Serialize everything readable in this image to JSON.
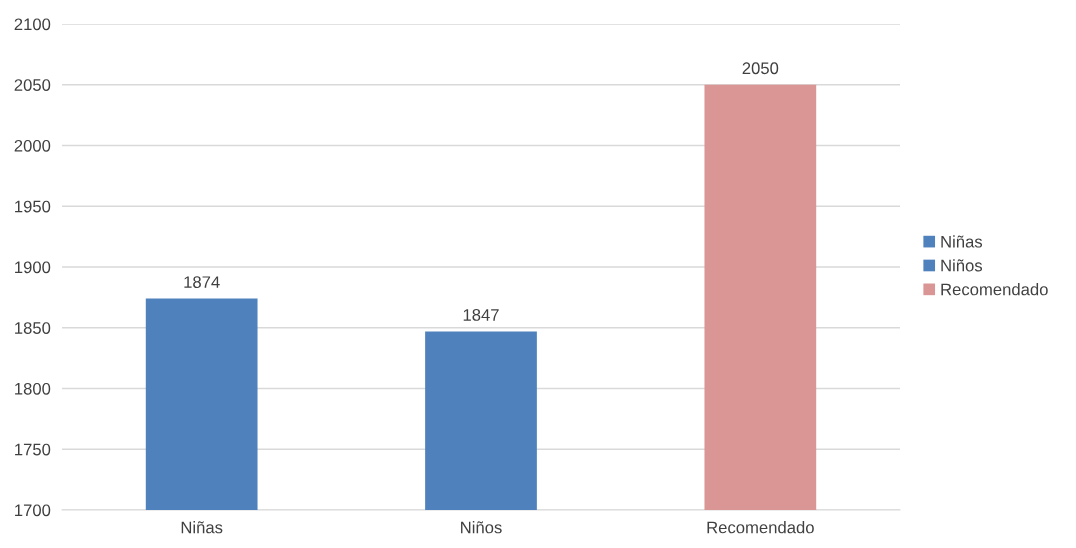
{
  "chart_data": {
    "type": "bar",
    "categories": [
      "Niñas",
      "Niños",
      "Recomendado"
    ],
    "series": [
      {
        "name": "Niñas",
        "color": "#4f81bd",
        "values": [
          1874,
          null,
          null
        ]
      },
      {
        "name": "Niños",
        "color": "#4f81bd",
        "values": [
          null,
          1847,
          null
        ]
      },
      {
        "name": "Recomendado",
        "color": "#d99694",
        "values": [
          null,
          null,
          2050
        ]
      }
    ],
    "ylim": [
      1700,
      2100
    ],
    "yticks": [
      1700,
      1750,
      1800,
      1850,
      1900,
      1950,
      2000,
      2050,
      2100
    ],
    "grid": "y",
    "legend": "right",
    "data_labels": true
  }
}
